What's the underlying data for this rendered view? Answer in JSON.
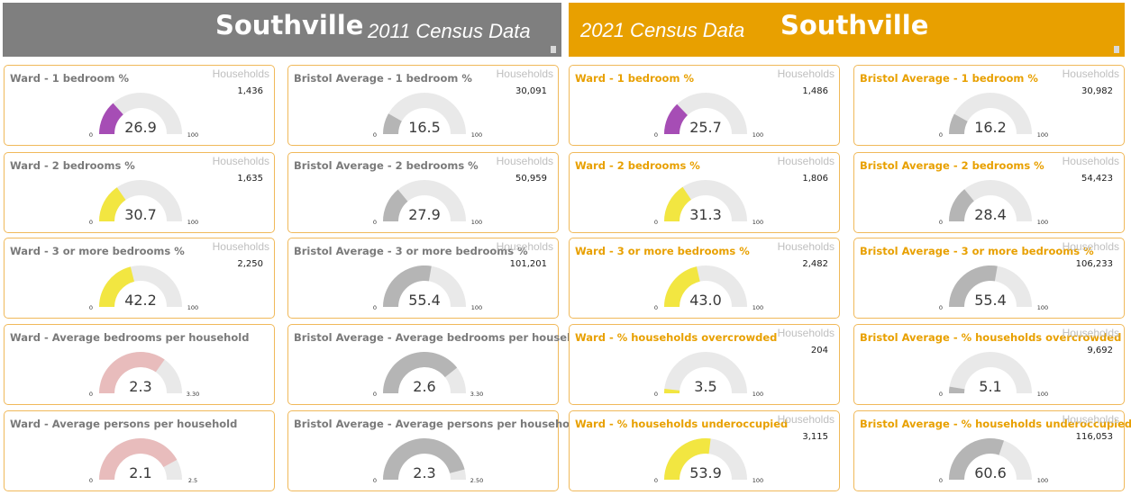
{
  "header": {
    "left": {
      "ward": "Southville",
      "census": "2011 Census Data",
      "color": "#7f7f7f"
    },
    "right": {
      "ward": "Southville",
      "census": "2021 Census Data",
      "color": "#e8a000"
    }
  },
  "households_label": "Households",
  "colors": {
    "track": "#e9e9e9",
    "ward_1bed": "#a64db5",
    "ward_yellow": "#f2e641",
    "ward_pink": "#e8bcbc",
    "bristol": "#b5b5b5",
    "title_2011": "#7a7a7a",
    "title_2021": "#e8a000",
    "card_border": "#f0b95a"
  },
  "chart_data": [
    {
      "type": "gauge",
      "title": "Ward - 1 bedroom %",
      "value": 26.9,
      "value_label": "26.9",
      "min": 0,
      "max": 100,
      "min_label": "0",
      "max_label": "100",
      "households": "1,436",
      "fill": "ward_1bed",
      "census": "2011"
    },
    {
      "type": "gauge",
      "title": "Bristol Average - 1 bedroom %",
      "value": 16.5,
      "value_label": "16.5",
      "min": 0,
      "max": 100,
      "min_label": "0",
      "max_label": "100",
      "households": "30,091",
      "fill": "bristol",
      "census": "2011"
    },
    {
      "type": "gauge",
      "title": "Ward - 1 bedroom %",
      "value": 25.7,
      "value_label": "25.7",
      "min": 0,
      "max": 100,
      "min_label": "0",
      "max_label": "100",
      "households": "1,486",
      "fill": "ward_1bed",
      "census": "2021"
    },
    {
      "type": "gauge",
      "title": "Bristol Average - 1 bedroom %",
      "value": 16.2,
      "value_label": "16.2",
      "min": 0,
      "max": 100,
      "min_label": "0",
      "max_label": "100",
      "households": "30,982",
      "fill": "bristol",
      "census": "2021"
    },
    {
      "type": "gauge",
      "title": "Ward - 2 bedrooms %",
      "value": 30.7,
      "value_label": "30.7",
      "min": 0,
      "max": 100,
      "min_label": "0",
      "max_label": "100",
      "households": "1,635",
      "fill": "ward_yellow",
      "census": "2011"
    },
    {
      "type": "gauge",
      "title": "Bristol Average - 2 bedrooms %",
      "value": 27.9,
      "value_label": "27.9",
      "min": 0,
      "max": 100,
      "min_label": "0",
      "max_label": "100",
      "households": "50,959",
      "fill": "bristol",
      "census": "2011"
    },
    {
      "type": "gauge",
      "title": "Ward - 2 bedrooms %",
      "value": 31.3,
      "value_label": "31.3",
      "min": 0,
      "max": 100,
      "min_label": "0",
      "max_label": "100",
      "households": "1,806",
      "fill": "ward_yellow",
      "census": "2021"
    },
    {
      "type": "gauge",
      "title": "Bristol Average - 2 bedrooms %",
      "value": 28.4,
      "value_label": "28.4",
      "min": 0,
      "max": 100,
      "min_label": "0",
      "max_label": "100",
      "households": "54,423",
      "fill": "bristol",
      "census": "2021"
    },
    {
      "type": "gauge",
      "title": "Ward - 3 or more bedrooms %",
      "value": 42.2,
      "value_label": "42.2",
      "min": 0,
      "max": 100,
      "min_label": "0",
      "max_label": "100",
      "households": "2,250",
      "fill": "ward_yellow",
      "census": "2011"
    },
    {
      "type": "gauge",
      "title": "Bristol Average - 3 or more bedrooms %",
      "value": 55.4,
      "value_label": "55.4",
      "min": 0,
      "max": 100,
      "min_label": "0",
      "max_label": "100",
      "households": "101,201",
      "fill": "bristol",
      "census": "2011"
    },
    {
      "type": "gauge",
      "title": "Ward - 3 or more bedrooms %",
      "value": 43.0,
      "value_label": "43.0",
      "min": 0,
      "max": 100,
      "min_label": "0",
      "max_label": "100",
      "households": "2,482",
      "fill": "ward_yellow",
      "census": "2021"
    },
    {
      "type": "gauge",
      "title": "Bristol Average - 3 or more bedrooms %",
      "value": 55.4,
      "value_label": "55.4",
      "min": 0,
      "max": 100,
      "min_label": "0",
      "max_label": "100",
      "households": "106,233",
      "fill": "bristol",
      "census": "2021"
    },
    {
      "type": "gauge",
      "title": "Ward - Average bedrooms per household",
      "value": 2.3,
      "value_label": "2.3",
      "min": 0,
      "max": 3.3,
      "min_label": "0",
      "max_label": "3.30",
      "fill": "ward_pink",
      "census": "2011"
    },
    {
      "type": "gauge",
      "title": "Bristol Average - Average bedrooms per household",
      "value": 2.6,
      "value_label": "2.6",
      "min": 0,
      "max": 3.3,
      "min_label": "0",
      "max_label": "3.30",
      "fill": "bristol",
      "census": "2011"
    },
    {
      "type": "gauge",
      "title": "Ward - % households overcrowded",
      "value": 3.5,
      "value_label": "3.5",
      "min": 0,
      "max": 100,
      "min_label": "0",
      "max_label": "100",
      "households": "204",
      "fill": "ward_yellow",
      "census": "2021"
    },
    {
      "type": "gauge",
      "title": "Bristol Average - % households overcrowded",
      "value": 5.1,
      "value_label": "5.1",
      "min": 0,
      "max": 100,
      "min_label": "0",
      "max_label": "100",
      "households": "9,692",
      "fill": "bristol",
      "census": "2021"
    },
    {
      "type": "gauge",
      "title": "Ward - Average persons per household",
      "value": 2.1,
      "value_label": "2.1",
      "min": 0,
      "max": 2.5,
      "min_label": "0",
      "max_label": "2.5",
      "fill": "ward_pink",
      "census": "2011"
    },
    {
      "type": "gauge",
      "title": "Bristol Average - Average persons per household",
      "value": 2.3,
      "value_label": "2.3",
      "min": 0,
      "max": 2.5,
      "min_label": "0",
      "max_label": "2.50",
      "fill": "bristol",
      "census": "2011"
    },
    {
      "type": "gauge",
      "title": "Ward - % households underoccupied",
      "value": 53.9,
      "value_label": "53.9",
      "min": 0,
      "max": 100,
      "min_label": "0",
      "max_label": "100",
      "households": "3,115",
      "fill": "ward_yellow",
      "census": "2021"
    },
    {
      "type": "gauge",
      "title": "Bristol Average - % households underoccupied",
      "value": 60.6,
      "value_label": "60.6",
      "min": 0,
      "max": 100,
      "min_label": "0",
      "max_label": "100",
      "households": "116,053",
      "fill": "bristol",
      "census": "2021"
    }
  ]
}
